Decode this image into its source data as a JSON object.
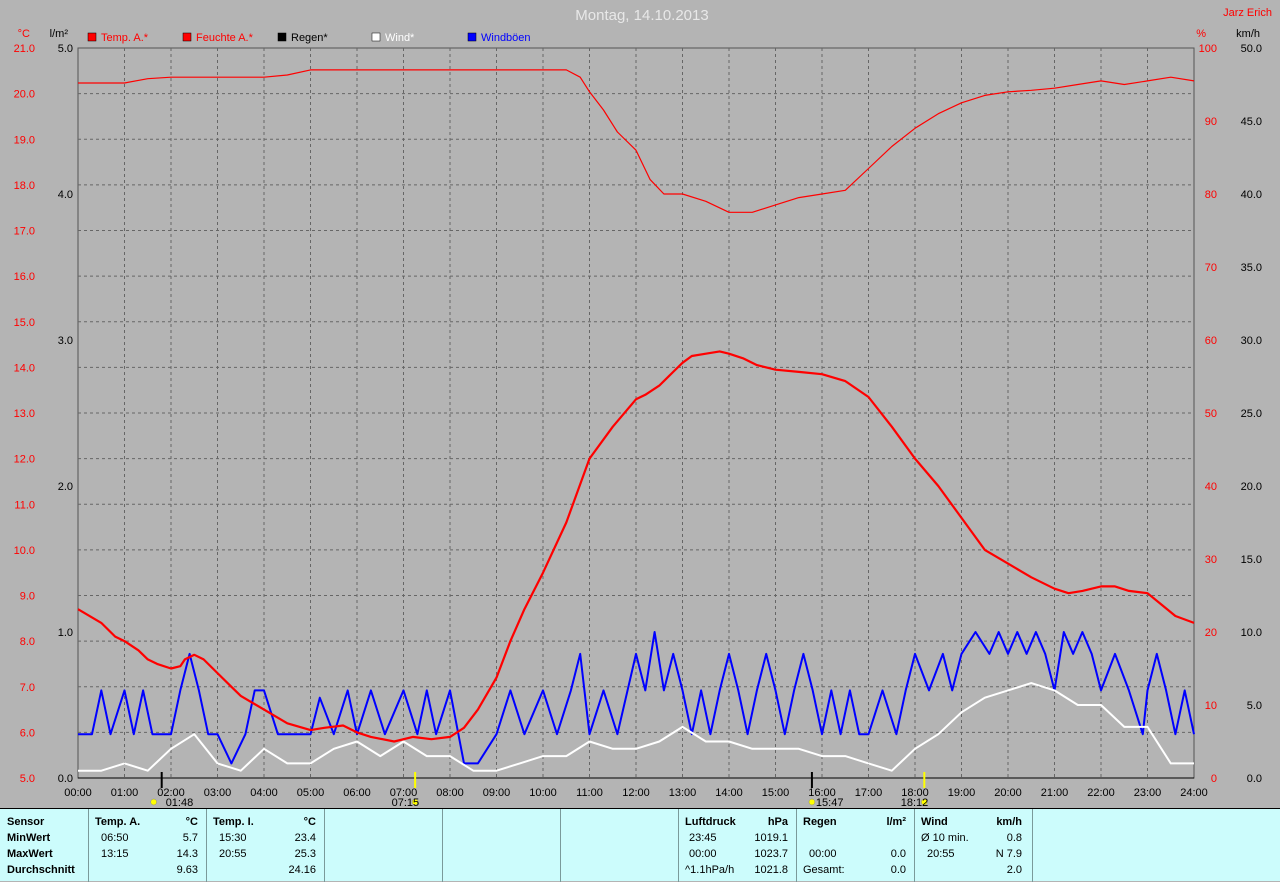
{
  "title": "Montag, 14.10.2013",
  "station": "Jarz Erich",
  "legend": [
    {
      "label": "Temp. A.*",
      "color": "#ff0000"
    },
    {
      "label": "Feuchte A.*",
      "color": "#ff0000"
    },
    {
      "label": "Regen*",
      "color": "#000000"
    },
    {
      "label": "Wind*",
      "color": "#ffffff"
    },
    {
      "label": "Windböen",
      "color": "#0000ff"
    }
  ],
  "axes": {
    "temp_unit": "°C",
    "rain_unit": "l/m²",
    "hum_unit": "%",
    "wind_unit": "km/h",
    "temp_ticks": [
      "21.0",
      "20.0",
      "19.0",
      "18.0",
      "17.0",
      "16.0",
      "15.0",
      "14.0",
      "13.0",
      "12.0",
      "11.0",
      "10.0",
      "9.0",
      "8.0",
      "7.0",
      "6.0",
      "5.0"
    ],
    "rain_ticks": [
      "5.0",
      "4.0",
      "3.0",
      "2.0",
      "1.0",
      "0.0"
    ],
    "hum_ticks": [
      "100",
      "90",
      "80",
      "70",
      "60",
      "50",
      "40",
      "30",
      "20",
      "10",
      "0"
    ],
    "wind_ticks": [
      "50.0",
      "45.0",
      "40.0",
      "35.0",
      "30.0",
      "25.0",
      "20.0",
      "15.0",
      "10.0",
      "5.0",
      "0.0"
    ],
    "x_ticks": [
      "00:00",
      "01:00",
      "02:00",
      "03:00",
      "04:00",
      "05:00",
      "06:00",
      "07:00",
      "08:00",
      "09:00",
      "10:00",
      "11:00",
      "12:00",
      "13:00",
      "14:00",
      "15:00",
      "16:00",
      "17:00",
      "18:00",
      "19:00",
      "20:00",
      "21:00",
      "22:00",
      "23:00",
      "24:00"
    ]
  },
  "markers": [
    {
      "time": "01:48",
      "label": "01:48",
      "symbol": "moonset"
    },
    {
      "time": "07:15",
      "label": "07:15",
      "symbol": "sunrise"
    },
    {
      "time": "15:47",
      "label": "15:47",
      "symbol": "moonrise"
    },
    {
      "time": "18:12",
      "label": "18:12",
      "symbol": "sunset"
    }
  ],
  "chart_data": {
    "type": "line",
    "x_unit": "hour",
    "xlim": [
      0,
      24
    ],
    "series": [
      {
        "name": "Temp. A.*",
        "axis": "temp",
        "ylim": [
          5,
          21
        ],
        "color": "#ff0000",
        "x": [
          0,
          0.5,
          0.8,
          1.0,
          1.3,
          1.5,
          1.7,
          2.0,
          2.2,
          2.3,
          2.5,
          2.7,
          3.0,
          3.3,
          3.5,
          4.0,
          4.5,
          5.0,
          5.3,
          5.7,
          6.0,
          6.3,
          6.8,
          7.2,
          7.6,
          8.0,
          8.3,
          8.6,
          9.0,
          9.3,
          9.6,
          10.0,
          10.5,
          11.0,
          11.5,
          12.0,
          12.2,
          12.5,
          12.8,
          13.0,
          13.2,
          13.5,
          13.8,
          14.0,
          14.3,
          14.6,
          15.0,
          15.5,
          16.0,
          16.5,
          17.0,
          17.5,
          18.0,
          18.5,
          19.0,
          19.5,
          20.0,
          20.5,
          21.0,
          21.3,
          21.6,
          22.0,
          22.3,
          22.6,
          23.0,
          23.3,
          23.6,
          24.0
        ],
        "values": [
          8.7,
          8.4,
          8.1,
          8.0,
          7.8,
          7.6,
          7.5,
          7.4,
          7.45,
          7.6,
          7.7,
          7.6,
          7.3,
          7.0,
          6.8,
          6.5,
          6.2,
          6.05,
          6.1,
          6.15,
          6.0,
          5.9,
          5.8,
          5.9,
          5.85,
          5.9,
          6.1,
          6.5,
          7.2,
          8.0,
          8.7,
          9.5,
          10.6,
          12.0,
          12.7,
          13.3,
          13.4,
          13.6,
          13.9,
          14.1,
          14.25,
          14.3,
          14.35,
          14.3,
          14.2,
          14.05,
          13.95,
          13.9,
          13.85,
          13.7,
          13.35,
          12.7,
          12.0,
          11.4,
          10.7,
          10.0,
          9.7,
          9.4,
          9.15,
          9.05,
          9.1,
          9.2,
          9.2,
          9.1,
          9.05,
          8.8,
          8.55,
          8.4
        ]
      },
      {
        "name": "Feuchte A.*",
        "axis": "hum",
        "ylim": [
          0,
          100
        ],
        "color": "#ff0000",
        "x": [
          0,
          1.0,
          1.5,
          2.0,
          3.0,
          4.0,
          4.5,
          5.0,
          6.0,
          7.0,
          8.0,
          9.0,
          10.0,
          10.5,
          10.8,
          11.0,
          11.3,
          11.6,
          12.0,
          12.3,
          12.6,
          13.0,
          13.5,
          14.0,
          14.5,
          15.0,
          15.5,
          16.0,
          16.5,
          17.0,
          17.5,
          18.0,
          18.5,
          19.0,
          19.5,
          20.0,
          20.5,
          21.0,
          21.5,
          22.0,
          22.5,
          23.0,
          23.5,
          24.0
        ],
        "values": [
          95.2,
          95.2,
          95.8,
          96.0,
          96.0,
          96.0,
          96.3,
          97.0,
          97.0,
          97.0,
          97.0,
          97.0,
          97.0,
          97.0,
          96.0,
          94.0,
          91.5,
          88.5,
          86.0,
          82.0,
          80.0,
          80.0,
          79.0,
          77.5,
          77.5,
          78.5,
          79.5,
          80.0,
          80.5,
          83.5,
          86.5,
          89.0,
          91.0,
          92.5,
          93.5,
          94.0,
          94.2,
          94.5,
          95.0,
          95.5,
          95.0,
          95.5,
          96.0,
          95.5
        ]
      },
      {
        "name": "Regen*",
        "axis": "rain",
        "ylim": [
          0,
          5
        ],
        "color": "#000000",
        "x": [
          0,
          24
        ],
        "values": [
          0.0,
          0.0
        ]
      },
      {
        "name": "Wind*",
        "axis": "wind",
        "ylim": [
          0,
          50
        ],
        "color": "#ffffff",
        "x": [
          0,
          0.5,
          1.0,
          1.5,
          2.0,
          2.5,
          3.0,
          3.5,
          4.0,
          4.5,
          5.0,
          5.5,
          6.0,
          6.5,
          7.0,
          7.5,
          8.0,
          8.5,
          9.0,
          9.5,
          10.0,
          10.5,
          11.0,
          11.5,
          12.0,
          12.5,
          13.0,
          13.5,
          14.0,
          14.5,
          15.0,
          15.5,
          16.0,
          16.5,
          17.0,
          17.5,
          18.0,
          18.5,
          19.0,
          19.5,
          20.0,
          20.5,
          21.0,
          21.5,
          22.0,
          22.5,
          23.0,
          23.5,
          24.0
        ],
        "values": [
          0.5,
          0.5,
          1.0,
          0.5,
          2.0,
          3.0,
          1.0,
          0.5,
          2.0,
          1.0,
          1.0,
          2.0,
          2.5,
          1.5,
          2.5,
          1.5,
          1.5,
          0.5,
          0.5,
          1.0,
          1.5,
          1.5,
          2.5,
          2.0,
          2.0,
          2.5,
          3.5,
          2.5,
          2.5,
          2.0,
          2.0,
          2.0,
          1.5,
          1.5,
          1.0,
          0.5,
          2.0,
          3.0,
          4.5,
          5.5,
          6.0,
          6.5,
          6.0,
          5.0,
          5.0,
          3.5,
          3.5,
          1.0,
          1.0
        ]
      },
      {
        "name": "Windböen",
        "axis": "wind",
        "ylim": [
          0,
          50
        ],
        "color": "#0000ff",
        "x": [
          0,
          0.3,
          0.5,
          0.7,
          1.0,
          1.2,
          1.4,
          1.6,
          1.8,
          2.0,
          2.2,
          2.4,
          2.6,
          2.8,
          3.0,
          3.3,
          3.6,
          3.8,
          4.0,
          4.3,
          4.5,
          5.0,
          5.2,
          5.5,
          5.8,
          6.0,
          6.3,
          6.6,
          7.0,
          7.3,
          7.5,
          7.7,
          8.0,
          8.3,
          8.6,
          9.0,
          9.3,
          9.6,
          10.0,
          10.3,
          10.6,
          10.8,
          11.0,
          11.3,
          11.6,
          12.0,
          12.2,
          12.4,
          12.6,
          12.8,
          13.0,
          13.2,
          13.4,
          13.6,
          13.8,
          14.0,
          14.2,
          14.4,
          14.6,
          14.8,
          15.0,
          15.2,
          15.4,
          15.6,
          15.8,
          16.0,
          16.2,
          16.4,
          16.6,
          16.8,
          17.0,
          17.3,
          17.6,
          17.8,
          18.0,
          18.3,
          18.6,
          18.8,
          19.0,
          19.3,
          19.6,
          19.8,
          20.0,
          20.2,
          20.4,
          20.6,
          20.8,
          21.0,
          21.2,
          21.4,
          21.6,
          21.8,
          22.0,
          22.3,
          22.6,
          22.9,
          23.0,
          23.2,
          23.4,
          23.6,
          23.8,
          24.0
        ],
        "values": [
          3.0,
          3.0,
          6.0,
          3.0,
          6.0,
          3.0,
          6.0,
          3.0,
          3.0,
          3.0,
          6.0,
          8.5,
          6.0,
          3.0,
          3.0,
          1.0,
          3.0,
          6.0,
          6.0,
          3.0,
          3.0,
          3.0,
          5.5,
          3.0,
          6.0,
          3.0,
          6.0,
          3.0,
          6.0,
          3.0,
          6.0,
          3.0,
          6.0,
          1.0,
          1.0,
          3.0,
          6.0,
          3.0,
          6.0,
          3.0,
          6.0,
          8.5,
          3.0,
          6.0,
          3.0,
          8.5,
          6.0,
          10.0,
          6.0,
          8.5,
          6.0,
          3.0,
          6.0,
          3.0,
          6.0,
          8.5,
          6.0,
          3.0,
          6.0,
          8.5,
          6.0,
          3.0,
          6.0,
          8.5,
          6.0,
          3.0,
          6.0,
          3.0,
          6.0,
          3.0,
          3.0,
          6.0,
          3.0,
          6.0,
          8.5,
          6.0,
          8.5,
          6.0,
          8.5,
          10.0,
          8.5,
          10.0,
          8.5,
          10.0,
          8.5,
          10.0,
          8.5,
          6.0,
          10.0,
          8.5,
          10.0,
          8.5,
          6.0,
          8.5,
          6.0,
          3.0,
          6.0,
          8.5,
          6.0,
          3.0,
          6.0,
          3.0
        ]
      }
    ]
  },
  "stats": {
    "sensor": {
      "header": "Sensor",
      "rows": [
        "MinWert",
        "MaxWert",
        "Durchschnitt"
      ]
    },
    "temp_a": {
      "header": "Temp. A.",
      "unit": "°C",
      "rows": [
        [
          "06:50",
          "5.7"
        ],
        [
          "13:15",
          "14.3"
        ],
        [
          "",
          "9.63"
        ]
      ]
    },
    "temp_i": {
      "header": "Temp. I.",
      "unit": "°C",
      "rows": [
        [
          "15:30",
          "23.4"
        ],
        [
          "20:55",
          "25.3"
        ],
        [
          "",
          "24.16"
        ]
      ]
    },
    "luftdruck": {
      "header": "Luftdruck",
      "unit": "hPa",
      "rows": [
        [
          "23:45",
          "1019.1"
        ],
        [
          "00:00",
          "1023.7"
        ],
        [
          "^1.1hPa/h",
          "1021.8"
        ]
      ]
    },
    "regen": {
      "header": "Regen",
      "unit": "l/m²",
      "rows": [
        [
          "",
          ""
        ],
        [
          "00:00",
          "0.0"
        ],
        [
          "Gesamt:",
          "0.0"
        ]
      ]
    },
    "wind": {
      "header": "Wind",
      "unit": "km/h",
      "rows": [
        [
          "Ø 10 min.",
          "0.8"
        ],
        [
          "20:55",
          "N 7.9"
        ],
        [
          "",
          "2.0"
        ]
      ]
    }
  }
}
